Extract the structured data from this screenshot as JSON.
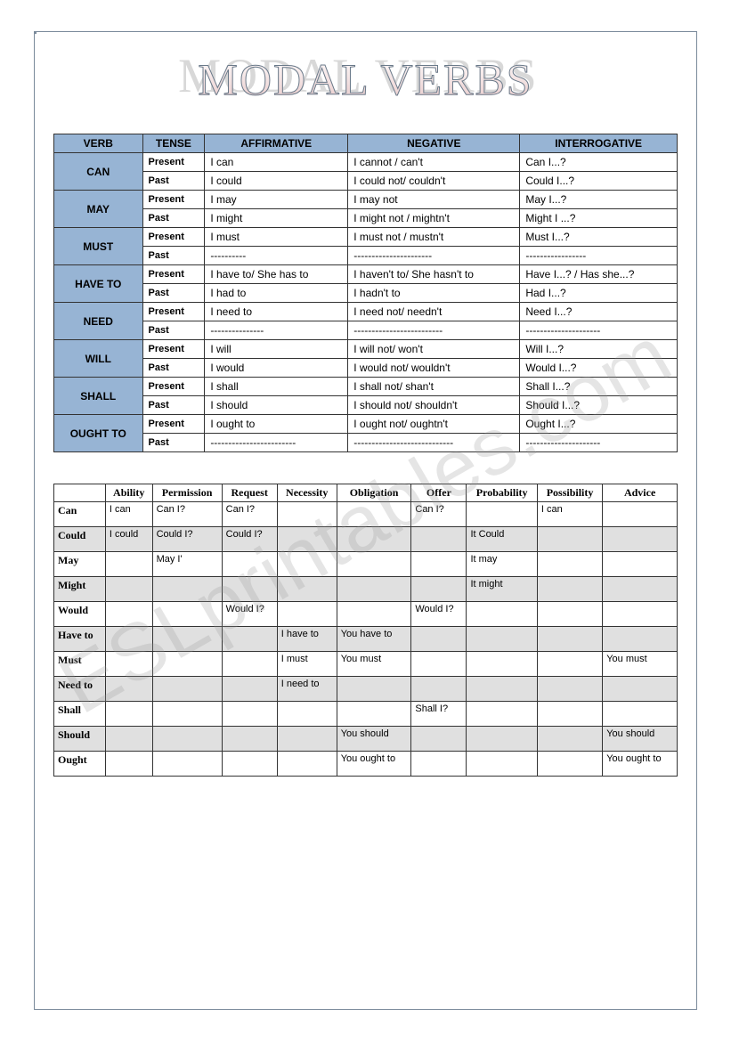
{
  "title": "MODAL VERBS",
  "watermark": "ESLprintables.com",
  "table1": {
    "headers": [
      "VERB",
      "TENSE",
      "AFFIRMATIVE",
      "NEGATIVE",
      "INTERROGATIVE"
    ],
    "rows": [
      {
        "verb": "CAN",
        "present": {
          "aff": "I can",
          "neg": "I cannot / can't",
          "int": "Can I...?"
        },
        "past": {
          "aff": "I could",
          "neg": "I could not/ couldn't",
          "int": "Could I...?"
        }
      },
      {
        "verb": "MAY",
        "present": {
          "aff": "I may",
          "neg": "I may not",
          "int": "May I...?"
        },
        "past": {
          "aff": "I might",
          "neg": "I might not / mightn't",
          "int": "Might I ...?"
        }
      },
      {
        "verb": "MUST",
        "present": {
          "aff": "I must",
          "neg": "I must not / mustn't",
          "int": "Must I...?"
        },
        "past": {
          "aff": "----------",
          "neg": "----------------------",
          "int": "-----------------"
        }
      },
      {
        "verb": "HAVE TO",
        "present": {
          "aff": "I have to/ She has to",
          "neg": "I haven't to/ She hasn't to",
          "int": "Have I...? / Has she...?"
        },
        "past": {
          "aff": "I had to",
          "neg": "I hadn't to",
          "int": "Had I...?"
        }
      },
      {
        "verb": "NEED",
        "present": {
          "aff": "I need to",
          "neg": "I need not/ needn't",
          "int": "Need I...?"
        },
        "past": {
          "aff": "---------------",
          "neg": "-------------------------",
          "int": "---------------------"
        }
      },
      {
        "verb": "WILL",
        "present": {
          "aff": "I will",
          "neg": "I will not/ won't",
          "int": "Will I...?"
        },
        "past": {
          "aff": "I would",
          "neg": "I would not/ wouldn't",
          "int": "Would I...?"
        }
      },
      {
        "verb": "SHALL",
        "present": {
          "aff": "I shall",
          "neg": "I shall not/ shan't",
          "int": "Shall I...?"
        },
        "past": {
          "aff": "I should",
          "neg": "I should not/ shouldn't",
          "int": "Should I...?"
        }
      },
      {
        "verb": "OUGHT TO",
        "present": {
          "aff": "I ought to",
          "neg": "I ought not/ oughtn't",
          "int": "Ought I...?"
        },
        "past": {
          "aff": "------------------------",
          "neg": "----------------------------",
          "int": "---------------------"
        }
      }
    ],
    "tense_present": "Present",
    "tense_past": "Past"
  },
  "table2": {
    "headers": [
      "",
      "Ability",
      "Permission",
      "Request",
      "Necessity",
      "Obligation",
      "Offer",
      "Probability",
      "Possibility",
      "Advice"
    ],
    "rows": [
      {
        "verb": "Can",
        "cells": [
          "I can",
          "Can I?",
          "Can I?",
          "",
          "",
          "Can I?",
          "",
          "I can",
          ""
        ]
      },
      {
        "verb": "Could",
        "cells": [
          "I could",
          "Could I?",
          "Could I?",
          "",
          "",
          "",
          "It Could",
          "",
          ""
        ]
      },
      {
        "verb": "May",
        "cells": [
          "",
          "May I'",
          "",
          "",
          "",
          "",
          "It may",
          "",
          ""
        ]
      },
      {
        "verb": "Might",
        "cells": [
          "",
          "",
          "",
          "",
          "",
          "",
          "It might",
          "",
          ""
        ]
      },
      {
        "verb": "Would",
        "cells": [
          "",
          "",
          "Would I?",
          "",
          "",
          "Would I?",
          "",
          "",
          ""
        ]
      },
      {
        "verb": "Have to",
        "cells": [
          "",
          "",
          "",
          "I have to",
          "You have to",
          "",
          "",
          "",
          ""
        ]
      },
      {
        "verb": "Must",
        "cells": [
          "",
          "",
          "",
          "I must",
          "You must",
          "",
          "",
          "",
          "You must"
        ]
      },
      {
        "verb": "Need to",
        "cells": [
          "",
          "",
          "",
          "I need to",
          "",
          "",
          "",
          "",
          ""
        ]
      },
      {
        "verb": "Shall",
        "cells": [
          "",
          "",
          "",
          "",
          "",
          "Shall I?",
          "",
          "",
          ""
        ]
      },
      {
        "verb": "Should",
        "cells": [
          "",
          "",
          "",
          "",
          "You should",
          "",
          "",
          "",
          "You should"
        ]
      },
      {
        "verb": "Ought",
        "cells": [
          "",
          "",
          "",
          "",
          "You ought to",
          "",
          "",
          "",
          "You ought to"
        ]
      }
    ]
  },
  "colors": {
    "header_bg": "#97b4d4",
    "alt_row_bg": "#e0e0e0",
    "border": "#333333",
    "title_stroke": "#6a7a8a"
  }
}
